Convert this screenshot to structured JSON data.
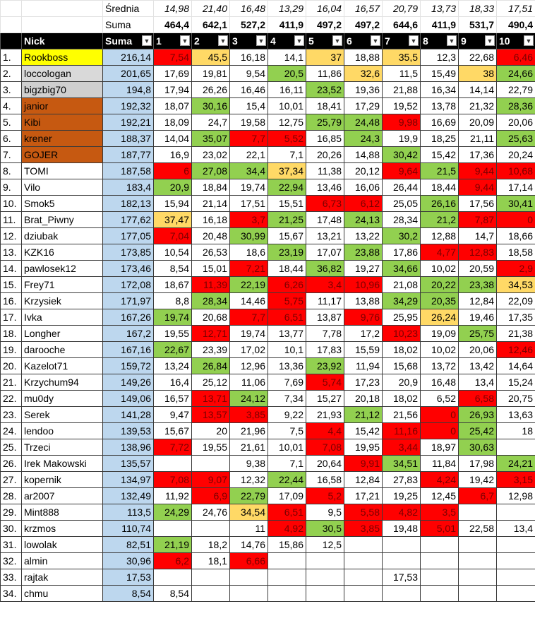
{
  "summary": {
    "average": {
      "label": "Średnia",
      "values": [
        "14,98",
        "21,40",
        "16,48",
        "13,29",
        "16,04",
        "16,57",
        "20,79",
        "13,73",
        "18,33",
        "17,51"
      ]
    },
    "sum": {
      "label": "Suma",
      "values": [
        "464,4",
        "642,1",
        "527,2",
        "411,9",
        "497,2",
        "497,2",
        "644,6",
        "411,9",
        "531,7",
        "490,4"
      ]
    }
  },
  "table": {
    "headers": [
      "Nick",
      "Suma",
      "1",
      "2",
      "3",
      "4",
      "5",
      "6",
      "7",
      "8",
      "9",
      "10"
    ],
    "header_color": "#000000",
    "total_color": "#bdd7ee",
    "fill_colors": {
      "r": "#ff0000",
      "g": "#92d050",
      "y": "#ffd966"
    },
    "rows": [
      {
        "rank": "1.",
        "nick": "Rookboss",
        "nick_color": "#ffff00",
        "total": "216,14",
        "scores": [
          "7,54",
          "45,5",
          "16,18",
          "14,1",
          "37",
          "18,88",
          "35,5",
          "12,3",
          "22,68",
          "6,46"
        ],
        "fills": [
          "r",
          "y",
          null,
          null,
          "y",
          null,
          "y",
          null,
          null,
          "r"
        ]
      },
      {
        "rank": "2.",
        "nick": "loccologan",
        "nick_color": "#d9d9d9",
        "total": "201,65",
        "scores": [
          "17,69",
          "19,81",
          "9,54",
          "20,5",
          "11,86",
          "32,6",
          "11,5",
          "15,49",
          "38",
          "24,66"
        ],
        "fills": [
          null,
          null,
          null,
          "g",
          null,
          "y",
          null,
          null,
          "y",
          "g"
        ]
      },
      {
        "rank": "3.",
        "nick": "bigzbig70",
        "nick_color": "#cfcfcf",
        "total": "194,8",
        "scores": [
          "17,94",
          "26,26",
          "16,46",
          "16,11",
          "23,52",
          "19,36",
          "21,88",
          "16,34",
          "14,14",
          "22,79"
        ],
        "fills": [
          null,
          null,
          null,
          null,
          "g",
          null,
          null,
          null,
          null,
          null
        ]
      },
      {
        "rank": "4.",
        "nick": "janior",
        "nick_color": "#c65911",
        "total": "192,32",
        "scores": [
          "18,07",
          "30,16",
          "15,4",
          "10,01",
          "18,41",
          "17,29",
          "19,52",
          "13,78",
          "21,32",
          "28,36"
        ],
        "fills": [
          null,
          "g",
          null,
          null,
          null,
          null,
          null,
          null,
          null,
          "g"
        ]
      },
      {
        "rank": "5.",
        "nick": "Kibi",
        "nick_color": "#c65911",
        "total": "192,21",
        "scores": [
          "18,09",
          "24,7",
          "19,58",
          "12,75",
          "25,79",
          "24,48",
          "9,98",
          "16,69",
          "20,09",
          "20,06"
        ],
        "fills": [
          null,
          null,
          null,
          null,
          "g",
          "g",
          "r",
          null,
          null,
          null
        ]
      },
      {
        "rank": "6.",
        "nick": "krener",
        "nick_color": "#c65911",
        "total": "188,37",
        "scores": [
          "14,04",
          "35,07",
          "7,7",
          "5,52",
          "16,85",
          "24,3",
          "19,9",
          "18,25",
          "21,11",
          "25,63"
        ],
        "fills": [
          null,
          "g",
          "r",
          "r",
          null,
          "g",
          null,
          null,
          null,
          "g"
        ]
      },
      {
        "rank": "7.",
        "nick": "GOJER",
        "nick_color": "#c65911",
        "total": "187,77",
        "scores": [
          "16,9",
          "23,02",
          "22,1",
          "7,1",
          "20,26",
          "14,88",
          "30,42",
          "15,42",
          "17,36",
          "20,24"
        ],
        "fills": [
          null,
          null,
          null,
          null,
          null,
          null,
          "g",
          null,
          null,
          null
        ]
      },
      {
        "rank": "8.",
        "nick": "TOMI",
        "nick_color": null,
        "total": "187,58",
        "scores": [
          "6",
          "27,08",
          "34,4",
          "37,34",
          "11,38",
          "20,12",
          "9,64",
          "21,5",
          "9,44",
          "10,68"
        ],
        "fills": [
          "r",
          "g",
          "g",
          "y",
          null,
          null,
          "r",
          "g",
          "r",
          "r"
        ]
      },
      {
        "rank": "9.",
        "nick": "Vilo",
        "nick_color": null,
        "total": "183,4",
        "scores": [
          "20,9",
          "18,84",
          "19,74",
          "22,94",
          "13,46",
          "16,06",
          "26,44",
          "18,44",
          "9,44",
          "17,14"
        ],
        "fills": [
          "g",
          null,
          null,
          "g",
          null,
          null,
          null,
          null,
          "r",
          null
        ]
      },
      {
        "rank": "10.",
        "nick": "Smok5",
        "nick_color": null,
        "total": "182,13",
        "scores": [
          "15,94",
          "21,14",
          "17,51",
          "15,51",
          "6,73",
          "6,12",
          "25,05",
          "26,16",
          "17,56",
          "30,41"
        ],
        "fills": [
          null,
          null,
          null,
          null,
          "r",
          "r",
          null,
          "g",
          null,
          "g"
        ]
      },
      {
        "rank": "11.",
        "nick": "Brat_Piwny",
        "nick_color": null,
        "total": "177,62",
        "scores": [
          "37,47",
          "16,18",
          "3,7",
          "21,25",
          "17,48",
          "24,13",
          "28,34",
          "21,2",
          "7,87",
          "0"
        ],
        "fills": [
          "y",
          null,
          "r",
          "g",
          null,
          "g",
          null,
          "g",
          "r",
          "r"
        ]
      },
      {
        "rank": "12.",
        "nick": "dziubak",
        "nick_color": null,
        "total": "177,05",
        "scores": [
          "7,04",
          "20,48",
          "30,99",
          "15,67",
          "13,21",
          "13,22",
          "30,2",
          "12,88",
          "14,7",
          "18,66"
        ],
        "fills": [
          "r",
          null,
          "g",
          null,
          null,
          null,
          "g",
          null,
          null,
          null
        ]
      },
      {
        "rank": "13.",
        "nick": "KZK16",
        "nick_color": null,
        "total": "173,85",
        "scores": [
          "10,54",
          "26,53",
          "18,6",
          "23,19",
          "17,07",
          "23,88",
          "17,86",
          "4,77",
          "12,83",
          "18,58"
        ],
        "fills": [
          null,
          null,
          null,
          "g",
          null,
          "g",
          null,
          "r",
          "r",
          null
        ]
      },
      {
        "rank": "14.",
        "nick": "pawlosek12",
        "nick_color": null,
        "total": "173,46",
        "scores": [
          "8,54",
          "15,01",
          "7,21",
          "18,44",
          "36,82",
          "19,27",
          "34,66",
          "10,02",
          "20,59",
          "2,9"
        ],
        "fills": [
          null,
          null,
          "r",
          null,
          "g",
          null,
          "g",
          null,
          null,
          "r"
        ]
      },
      {
        "rank": "15.",
        "nick": "Frey71",
        "nick_color": null,
        "total": "172,08",
        "scores": [
          "18,67",
          "11,39",
          "22,19",
          "6,26",
          "3,4",
          "10,96",
          "21,08",
          "20,22",
          "23,38",
          "34,53"
        ],
        "fills": [
          null,
          "r",
          "g",
          "r",
          "r",
          "r",
          null,
          "g",
          "g",
          "y"
        ]
      },
      {
        "rank": "16.",
        "nick": "Krzysiek",
        "nick_color": null,
        "total": "171,97",
        "scores": [
          "8,8",
          "28,34",
          "14,46",
          "5,75",
          "11,17",
          "13,88",
          "34,29",
          "20,35",
          "12,84",
          "22,09"
        ],
        "fills": [
          null,
          "g",
          null,
          "r",
          null,
          null,
          "g",
          "g",
          null,
          null
        ]
      },
      {
        "rank": "17.",
        "nick": "Ivka",
        "nick_color": null,
        "total": "167,26",
        "scores": [
          "19,74",
          "20,68",
          "7,7",
          "6,51",
          "13,87",
          "9,76",
          "25,95",
          "26,24",
          "19,46",
          "17,35"
        ],
        "fills": [
          "g",
          null,
          "r",
          "r",
          null,
          "r",
          null,
          "y",
          null,
          null
        ]
      },
      {
        "rank": "18.",
        "nick": "Longher",
        "nick_color": null,
        "total": "167,2",
        "scores": [
          "19,55",
          "12,71",
          "19,74",
          "13,77",
          "7,78",
          "17,2",
          "10,23",
          "19,09",
          "25,75",
          "21,38"
        ],
        "fills": [
          null,
          "r",
          null,
          null,
          null,
          null,
          "r",
          null,
          "g",
          null
        ]
      },
      {
        "rank": "19.",
        "nick": "darooche",
        "nick_color": null,
        "total": "167,16",
        "scores": [
          "22,67",
          "23,39",
          "17,02",
          "10,1",
          "17,83",
          "15,59",
          "18,02",
          "10,02",
          "20,06",
          "12,46"
        ],
        "fills": [
          "g",
          null,
          null,
          null,
          null,
          null,
          null,
          null,
          null,
          "r"
        ]
      },
      {
        "rank": "20.",
        "nick": "Kazelot71",
        "nick_color": null,
        "total": "159,72",
        "scores": [
          "13,24",
          "26,84",
          "12,96",
          "13,36",
          "23,92",
          "11,94",
          "15,68",
          "13,72",
          "13,42",
          "14,64"
        ],
        "fills": [
          null,
          "g",
          null,
          null,
          "g",
          null,
          null,
          null,
          null,
          null
        ]
      },
      {
        "rank": "21.",
        "nick": "Krzychum94",
        "nick_color": null,
        "total": "149,26",
        "scores": [
          "16,4",
          "25,12",
          "11,06",
          "7,69",
          "5,74",
          "17,23",
          "20,9",
          "16,48",
          "13,4",
          "15,24"
        ],
        "fills": [
          null,
          null,
          null,
          null,
          "r",
          null,
          null,
          null,
          null,
          null
        ]
      },
      {
        "rank": "22.",
        "nick": "mu0dy",
        "nick_color": null,
        "total": "149,06",
        "scores": [
          "16,57",
          "13,71",
          "24,12",
          "7,34",
          "15,27",
          "20,18",
          "18,02",
          "6,52",
          "6,58",
          "20,75"
        ],
        "fills": [
          null,
          "r",
          "g",
          null,
          null,
          null,
          null,
          null,
          "r",
          null
        ]
      },
      {
        "rank": "23.",
        "nick": "Serek",
        "nick_color": null,
        "total": "141,28",
        "scores": [
          "9,47",
          "13,57",
          "3,85",
          "9,22",
          "21,93",
          "21,12",
          "21,56",
          "0",
          "26,93",
          "13,63"
        ],
        "fills": [
          null,
          "r",
          "r",
          null,
          null,
          "g",
          null,
          "r",
          "g",
          null
        ]
      },
      {
        "rank": "24.",
        "nick": "lendoo",
        "nick_color": null,
        "total": "139,53",
        "scores": [
          "15,67",
          "20",
          "21,96",
          "7,5",
          "4,4",
          "15,42",
          "11,16",
          "0",
          "25,42",
          "18"
        ],
        "fills": [
          null,
          null,
          null,
          null,
          "r",
          null,
          "r",
          "r",
          "g",
          null
        ]
      },
      {
        "rank": "25.",
        "nick": "Trzeci",
        "nick_color": null,
        "total": "138,96",
        "scores": [
          "7,72",
          "19,55",
          "21,61",
          "10,01",
          "7,08",
          "19,95",
          "3,44",
          "18,97",
          "30,63",
          null
        ],
        "fills": [
          "r",
          null,
          null,
          null,
          "r",
          null,
          "r",
          null,
          "g",
          null
        ]
      },
      {
        "rank": "26.",
        "nick": "Irek Makowski",
        "nick_color": null,
        "total": "135,57",
        "scores": [
          null,
          null,
          "9,38",
          "7,1",
          "20,64",
          "9,91",
          "34,51",
          "11,84",
          "17,98",
          "24,21"
        ],
        "fills": [
          null,
          null,
          null,
          null,
          null,
          "r",
          "g",
          null,
          null,
          "g"
        ]
      },
      {
        "rank": "27.",
        "nick": "kopernik",
        "nick_color": null,
        "total": "134,97",
        "scores": [
          "7,08",
          "9,07",
          "12,32",
          "22,44",
          "16,58",
          "12,84",
          "27,83",
          "4,24",
          "19,42",
          "3,15"
        ],
        "fills": [
          "r",
          "r",
          null,
          "g",
          null,
          null,
          null,
          "r",
          null,
          "r"
        ]
      },
      {
        "rank": "28.",
        "nick": "ar2007",
        "nick_color": null,
        "total": "132,49",
        "scores": [
          "11,92",
          "6,9",
          "22,79",
          "17,09",
          "5,2",
          "17,21",
          "19,25",
          "12,45",
          "6,7",
          "12,98"
        ],
        "fills": [
          null,
          "r",
          "g",
          null,
          "r",
          null,
          null,
          null,
          "r",
          null
        ]
      },
      {
        "rank": "29.",
        "nick": "Mint888",
        "nick_color": null,
        "total": "113,5",
        "scores": [
          "24,29",
          "24,76",
          "34,54",
          "6,51",
          "9,5",
          "5,58",
          "4,82",
          "3,5",
          null,
          null
        ],
        "fills": [
          "g",
          null,
          "y",
          "r",
          null,
          "r",
          "r",
          "r",
          null,
          null
        ]
      },
      {
        "rank": "30.",
        "nick": "krzmos",
        "nick_color": null,
        "total": "110,74",
        "scores": [
          null,
          null,
          "11",
          "4,92",
          "30,5",
          "3,85",
          "19,48",
          "5,01",
          "22,58",
          "13,4"
        ],
        "fills": [
          null,
          null,
          null,
          "r",
          "g",
          "r",
          null,
          "r",
          null,
          null
        ]
      },
      {
        "rank": "31.",
        "nick": "lowolak",
        "nick_color": null,
        "total": "82,51",
        "scores": [
          "21,19",
          "18,2",
          "14,76",
          "15,86",
          "12,5",
          null,
          null,
          null,
          null,
          null
        ],
        "fills": [
          "g",
          null,
          null,
          null,
          null,
          null,
          null,
          null,
          null,
          null
        ]
      },
      {
        "rank": "32.",
        "nick": "almin",
        "nick_color": null,
        "total": "30,96",
        "scores": [
          "6,2",
          "18,1",
          "6,66",
          null,
          null,
          null,
          null,
          null,
          null,
          null
        ],
        "fills": [
          "r",
          null,
          "r",
          null,
          null,
          null,
          null,
          null,
          null,
          null
        ]
      },
      {
        "rank": "33.",
        "nick": "rajtak",
        "nick_color": null,
        "total": "17,53",
        "scores": [
          null,
          null,
          null,
          null,
          null,
          null,
          "17,53",
          null,
          null,
          null
        ],
        "fills": [
          null,
          null,
          null,
          null,
          null,
          null,
          null,
          null,
          null,
          null
        ]
      },
      {
        "rank": "34.",
        "nick": "chmu",
        "nick_color": null,
        "total": "8,54",
        "scores": [
          "8,54",
          null,
          null,
          null,
          null,
          null,
          null,
          null,
          null,
          null
        ],
        "fills": [
          null,
          null,
          null,
          null,
          null,
          null,
          null,
          null,
          null,
          null
        ]
      }
    ]
  }
}
